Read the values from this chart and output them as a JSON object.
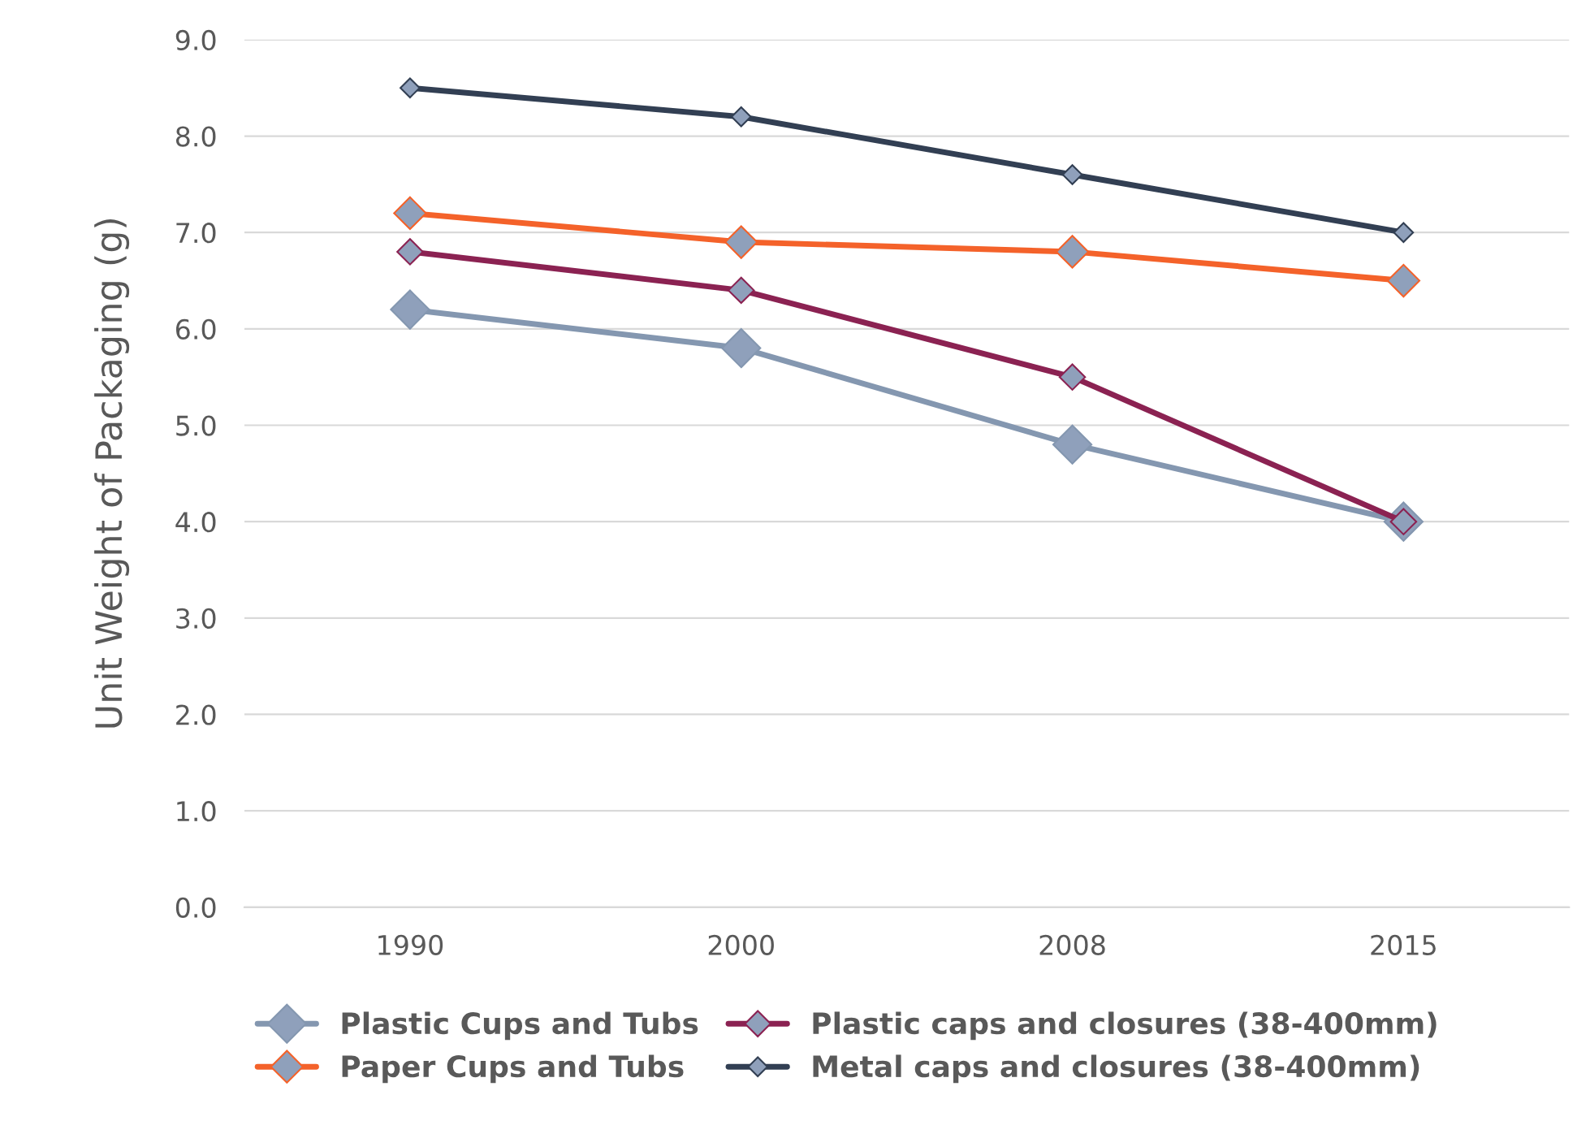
{
  "chart_data": {
    "type": "line",
    "ylabel": "Unit Weight of Packaging (g)",
    "categories": [
      "1990",
      "2000",
      "2008",
      "2015"
    ],
    "series": [
      {
        "name": "Plastic Cups and Tubs",
        "color": "#8497b0",
        "values": [
          6.2,
          5.8,
          4.8,
          4.0
        ]
      },
      {
        "name": "Paper Cups and Tubs",
        "color": "#f4622a",
        "values": [
          7.2,
          6.9,
          6.8,
          6.5
        ]
      },
      {
        "name": "Plastic caps and closures (38-400mm)",
        "color": "#8b2252",
        "values": [
          6.8,
          6.4,
          5.5,
          4.0
        ]
      },
      {
        "name": "Metal caps and closures (38-400mm)",
        "color": "#323f53",
        "values": [
          8.5,
          8.2,
          7.6,
          7.0
        ]
      }
    ],
    "ylim": [
      0,
      9
    ],
    "yticks": [
      {
        "value": 0,
        "label": "0.0"
      },
      {
        "value": 1,
        "label": "1.0"
      },
      {
        "value": 2,
        "label": "2.0"
      },
      {
        "value": 3,
        "label": "3.0"
      },
      {
        "value": 4,
        "label": "4.0"
      },
      {
        "value": 5,
        "label": "5.0"
      },
      {
        "value": 6,
        "label": "6.0"
      },
      {
        "value": 7,
        "label": "7.0"
      },
      {
        "value": 8,
        "label": "8.0"
      },
      {
        "value": 9,
        "label": "9.0"
      }
    ],
    "grid": "y",
    "legend": "bottom",
    "marker": "diamond",
    "line_style": "solid"
  }
}
